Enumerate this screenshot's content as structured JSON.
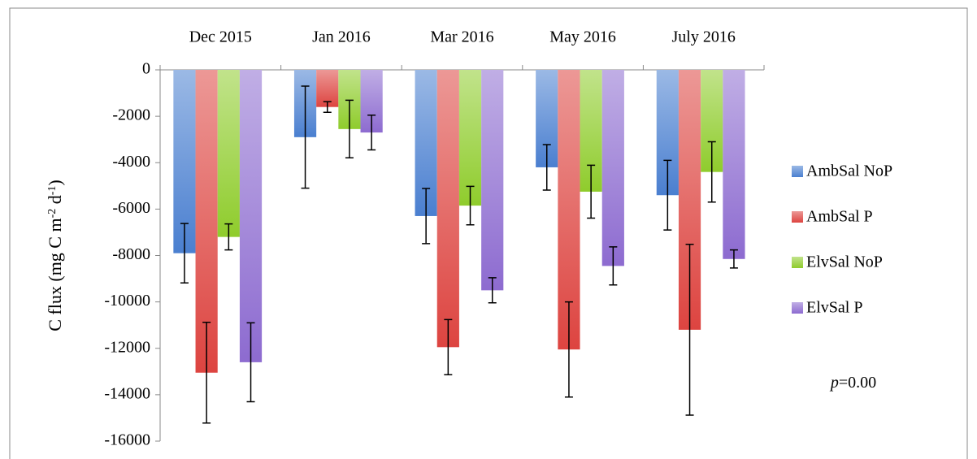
{
  "chart_data": {
    "type": "bar",
    "categories": [
      "Dec 2015",
      "Jan 2016",
      "Mar 2016",
      "May 2016",
      "July 2016"
    ],
    "ylabel": [
      "C flux (mg C m",
      "-2",
      " d",
      "-1",
      ")"
    ],
    "annotation": [
      "p",
      "=0.00"
    ],
    "ylim": [
      -16000,
      0
    ],
    "yticks": [
      0,
      -2000,
      -4000,
      -6000,
      -8000,
      -10000,
      -12000,
      -14000,
      -16000
    ],
    "series": [
      {
        "name": "AmbSal NoP",
        "color": "#4a7fd0",
        "values": [
          -7900,
          -2900,
          -6300,
          -4200,
          -5400
        ],
        "errors": [
          1280,
          2200,
          1190,
          980,
          1500
        ]
      },
      {
        "name": "AmbSal P",
        "color": "#dd4440",
        "values": [
          -13050,
          -1600,
          -11950,
          -12050,
          -11200
        ],
        "errors": [
          2170,
          230,
          1190,
          2050,
          3680
        ]
      },
      {
        "name": "ElvSal NoP",
        "color": "#8fcc2c",
        "values": [
          -7200,
          -2550,
          -5850,
          -5250,
          -4400
        ],
        "errors": [
          560,
          1240,
          830,
          1140,
          1300
        ]
      },
      {
        "name": "ElvSal P",
        "color": "#8d6bd0",
        "values": [
          -12600,
          -2700,
          -9500,
          -8450,
          -8150
        ],
        "errors": [
          1700,
          750,
          540,
          820,
          390
        ]
      }
    ]
  }
}
